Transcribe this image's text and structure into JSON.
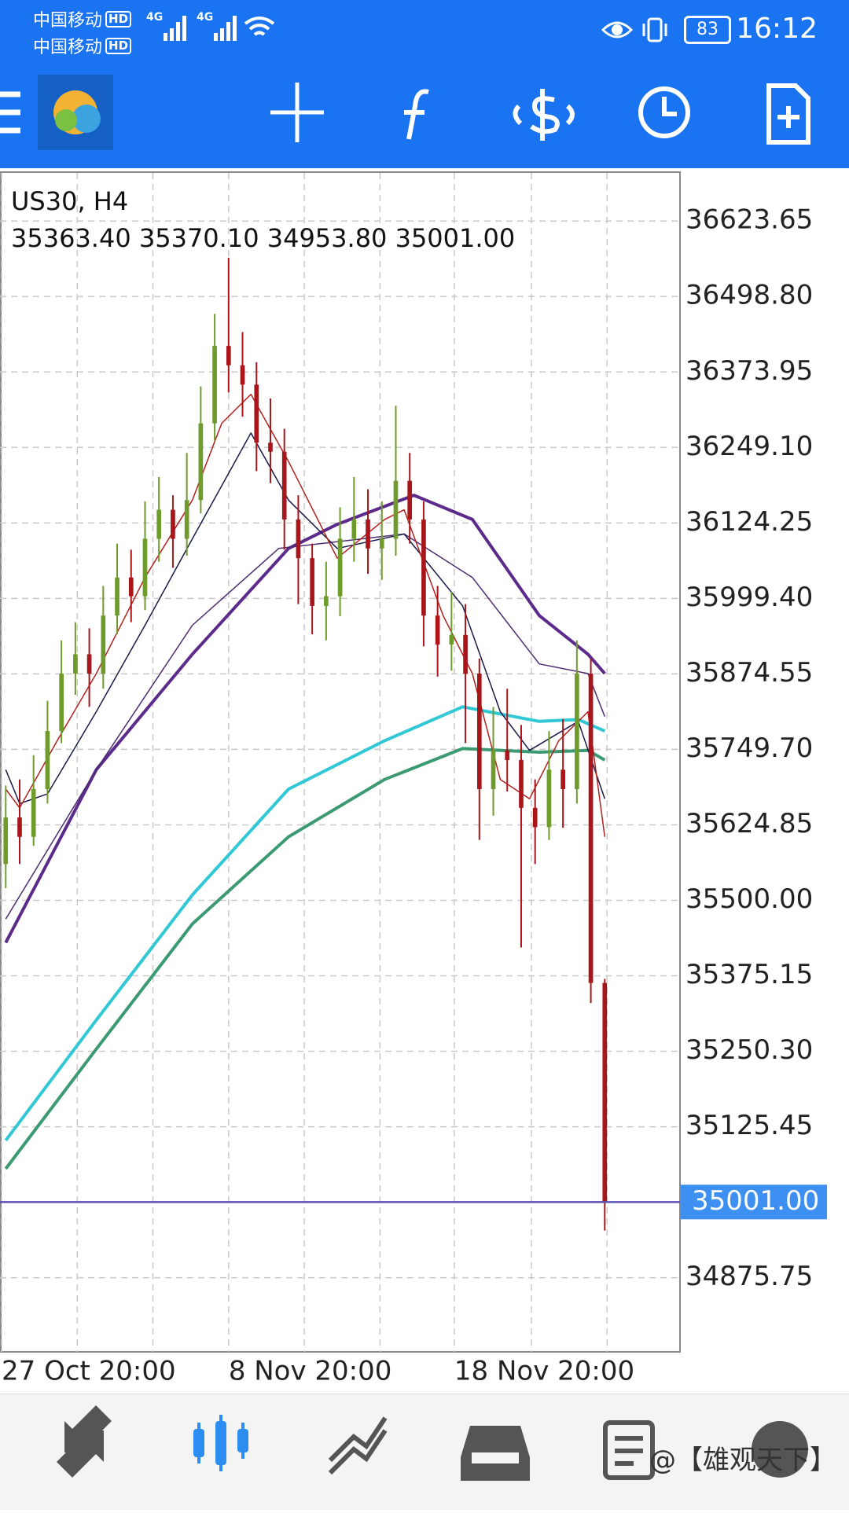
{
  "status_bar": {
    "carrier_1": "中国移动",
    "carrier_2": "中国移动",
    "hd": "HD",
    "network": "4G",
    "battery": "83",
    "time": "16:12"
  },
  "chart_data": {
    "type": "candlestick",
    "title": "US30, H4",
    "ohlc_labels": [
      "35363.40",
      "35370.10",
      "34953.80",
      "35001.00"
    ],
    "open": [
      35560,
      35637,
      35605,
      35684,
      35780,
      35875,
      35907,
      35875,
      35971,
      36034,
      36003,
      36098,
      36146,
      36098,
      36162,
      36289,
      36417,
      36385,
      36353,
      36257,
      36242,
      36130,
      36066,
      35987,
      36003,
      36098,
      36130,
      36082,
      36098,
      36194,
      36130,
      35971,
      35923,
      35939,
      35875,
      35684,
      35748,
      35732,
      35653,
      35621,
      35716,
      35684,
      35875,
      35363.4
    ],
    "high": [
      35690,
      35700,
      35740,
      35830,
      35930,
      35960,
      35950,
      36020,
      36090,
      36080,
      36160,
      36200,
      36170,
      36240,
      36350,
      36470,
      36563,
      36440,
      36390,
      36330,
      36280,
      36170,
      36090,
      36060,
      36150,
      36200,
      36180,
      36160,
      36318,
      36240,
      36160,
      36020,
      36010,
      35990,
      35900,
      35820,
      35850,
      35790,
      35700,
      35780,
      35800,
      35930,
      35900,
      35370.1
    ],
    "low": [
      35520,
      35560,
      35590,
      35660,
      35760,
      35840,
      35820,
      35850,
      35940,
      35960,
      35980,
      36060,
      36050,
      36070,
      36140,
      36260,
      36340,
      36300,
      36210,
      36190,
      36080,
      35990,
      35940,
      35930,
      35970,
      36060,
      36040,
      36030,
      36070,
      36090,
      35920,
      35870,
      35880,
      35760,
      35600,
      35640,
      35680,
      35422,
      35560,
      35600,
      35620,
      35660,
      35330,
      34953.8
    ],
    "close": [
      35637,
      35605,
      35684,
      35780,
      35875,
      35907,
      35875,
      35971,
      36034,
      36003,
      36098,
      36146,
      36098,
      36162,
      36289,
      36417,
      36385,
      36353,
      36257,
      36242,
      36130,
      36066,
      35987,
      36003,
      36098,
      36130,
      36082,
      36098,
      36194,
      36130,
      35971,
      35923,
      35939,
      35875,
      35684,
      35748,
      35732,
      35653,
      35621,
      35716,
      35684,
      35875,
      35363.4,
      35001
    ],
    "up_color": "#6f9b2c",
    "down_color": "#a8161c",
    "overlays": [
      {
        "color": "#2fc8d4",
        "width": 4,
        "x": [
          0,
          6.5,
          13.4,
          20.3,
          27.2,
          32.8,
          38.3,
          41.1,
          43
        ],
        "values": [
          35103,
          35302,
          35509,
          35684,
          35764,
          35820,
          35796,
          35799,
          35780
        ]
      },
      {
        "color": "#3c9a72",
        "width": 4,
        "x": [
          0,
          6.5,
          13.4,
          20.3,
          27.2,
          32.8,
          38.3,
          41.8,
          43
        ],
        "values": [
          35056,
          35254,
          35461,
          35605,
          35700,
          35751,
          35745,
          35748,
          35732
        ]
      },
      {
        "color": "#5c2a8a",
        "width": 4,
        "x": [
          0,
          6.5,
          13.4,
          20.3,
          23.8,
          29.3,
          33.5,
          38.3,
          41.8,
          43
        ],
        "values": [
          35430,
          35716,
          35907,
          36082,
          36122,
          36170,
          36130,
          35971,
          35907,
          35875
        ]
      },
      {
        "color": "#4b2c70",
        "width": 1.5,
        "x": [
          0,
          6.5,
          13.4,
          19.6,
          28.6,
          33.5,
          38.3,
          41.8,
          43
        ],
        "values": [
          35469,
          35716,
          35955,
          36082,
          36106,
          36034,
          35891,
          35875,
          35804
        ]
      },
      {
        "color": "#1a1a4a",
        "width": 1.5,
        "x": [
          0,
          1,
          3,
          6.5,
          10,
          13.4,
          17.6,
          20.3,
          23.8,
          28.6,
          32.8,
          35.5,
          37.6,
          41.1,
          43
        ],
        "values": [
          35716,
          35660,
          35676,
          35812,
          35955,
          36098,
          36273,
          36162,
          36082,
          36106,
          35987,
          35812,
          35748,
          35796,
          35668
        ]
      },
      {
        "color": "#b3201e",
        "width": 1.5,
        "x": [
          0,
          1,
          3.7,
          6.5,
          10,
          13.4,
          15.5,
          17.6,
          20.3,
          23.8,
          27.2,
          28.6,
          31.4,
          33.5,
          35.5,
          37.6,
          39.7,
          41.8,
          43
        ],
        "values": [
          35684,
          35653,
          35764,
          35875,
          36034,
          36162,
          36289,
          36337,
          36226,
          36066,
          36130,
          36146,
          35971,
          35875,
          35700,
          35668,
          35764,
          35812,
          35605
        ]
      }
    ],
    "xlim": [
      -0.41,
      48.4
    ],
    "xticks": [
      {
        "value": -0.3,
        "label": "27 Oct 20:00"
      },
      {
        "value": 16,
        "label": "8 Nov 20:00"
      },
      {
        "value": 32.2,
        "label": "18 Nov 20:00"
      }
    ],
    "ylim": [
      34753.1,
      36703.2
    ],
    "yticks": [
      36623.65,
      {
        "value": 36498.8,
        "label": "36498.80"
      },
      36373.95,
      {
        "value": 36249.1,
        "label": "36249.10"
      },
      36124.25,
      {
        "value": 35999.4,
        "label": "35999.40"
      },
      35874.55,
      {
        "value": 35749.7,
        "label": "35749.70"
      },
      35624.85,
      {
        "value": 35500,
        "label": "35500.00"
      },
      35375.15,
      {
        "value": 35250.3,
        "label": "35250.30"
      },
      35125.45,
      {
        "value": 35001,
        "label": "35001.00"
      },
      34875.75
    ],
    "current_price": {
      "value": 35001,
      "label": "35001.00",
      "color": "#5a50b4"
    },
    "grid": true
  },
  "watermark": "@【雄观天下】"
}
